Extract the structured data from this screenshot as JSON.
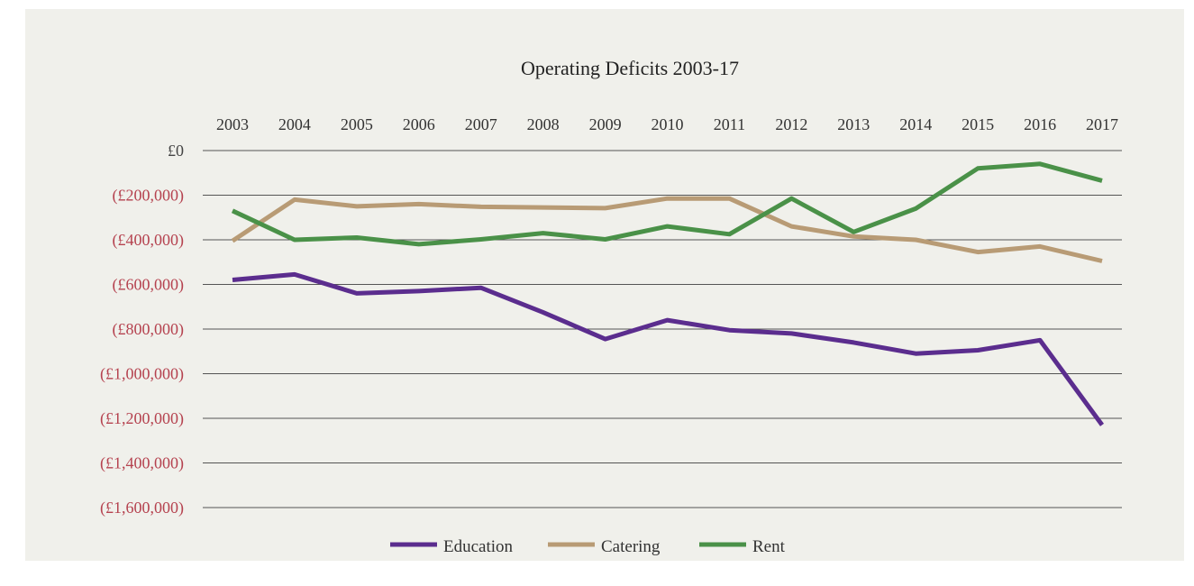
{
  "chart_data": {
    "type": "line",
    "title": "Operating Deficits 2003-17",
    "x": [
      "2003",
      "2004",
      "2005",
      "2006",
      "2007",
      "2008",
      "2009",
      "2010",
      "2011",
      "2012",
      "2013",
      "2014",
      "2015",
      "2016",
      "2017"
    ],
    "ylim": [
      -1600000,
      0
    ],
    "yticks": [
      0,
      -200000,
      -400000,
      -600000,
      -800000,
      -1000000,
      -1200000,
      -1400000,
      -1600000
    ],
    "ytick_labels": [
      "£0",
      "(£200,000)",
      "(£400,000)",
      "(£600,000)",
      "(£800,000)",
      "(£1,000,000)",
      "(£1,200,000)",
      "(£1,400,000)",
      "(£1,600,000)"
    ],
    "x_axis_position": "top",
    "grid": true,
    "legend_position": "bottom",
    "series": [
      {
        "name": "Education",
        "color": "#5b2d8e",
        "values": [
          -580000,
          -555000,
          -640000,
          -630000,
          -615000,
          -725000,
          -845000,
          -760000,
          -805000,
          -820000,
          -860000,
          -910000,
          -895000,
          -850000,
          -1230000
        ]
      },
      {
        "name": "Catering",
        "color": "#b89b75",
        "values": [
          -405000,
          -220000,
          -250000,
          -240000,
          -252000,
          -255000,
          -258000,
          -215000,
          -215000,
          -340000,
          -385000,
          -400000,
          -455000,
          -430000,
          -495000
        ]
      },
      {
        "name": "Rent",
        "color": "#4a9148",
        "values": [
          -270000,
          -400000,
          -390000,
          -420000,
          -398000,
          -370000,
          -398000,
          -340000,
          -375000,
          -215000,
          -365000,
          -260000,
          -80000,
          -60000,
          -135000
        ]
      }
    ]
  },
  "colors": {
    "background": "#f0f0eb",
    "zero_label": "#444444",
    "negative_label": "#b5424f",
    "gridline": "#222222"
  }
}
